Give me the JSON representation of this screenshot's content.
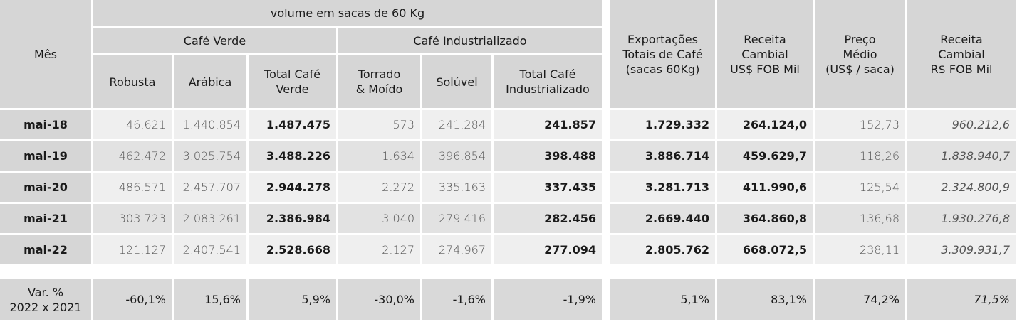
{
  "header": {
    "mes": "Mês",
    "volume": "volume em sacas de 60 Kg",
    "cafe_verde": "Café Verde",
    "cafe_industrializado": "Café Industrializado",
    "robusta": "Robusta",
    "arabica": "Arábica",
    "total_verde_1": "Total Café",
    "total_verde_2": "Verde",
    "torrado_1": "Torrado",
    "torrado_2": "& Moído",
    "soluvel": "Solúvel",
    "total_ind_1": "Total Café",
    "total_ind_2": "Industrializado",
    "export_1": "Exportações",
    "export_2": "Totais de Café",
    "export_3": "(sacas 60Kg)",
    "receita_usd_1": "Receita",
    "receita_usd_2": "Cambial",
    "receita_usd_3": "US$ FOB Mil",
    "preco_1": "Preço",
    "preco_2": "Médio",
    "preco_3": "(US$ / saca)",
    "receita_brl_1": "Receita",
    "receita_brl_2": "Cambial",
    "receita_brl_3": "R$ FOB Mil"
  },
  "rows": [
    {
      "mes": "mai-18",
      "robusta": "46.621",
      "arabica": "1.440.854",
      "total_verde": "1.487.475",
      "torrado": "573",
      "soluvel": "241.284",
      "total_ind": "241.857",
      "export": "1.729.332",
      "receita_usd": "264.124,0",
      "preco": "152,73",
      "receita_brl": "960.212,6"
    },
    {
      "mes": "mai-19",
      "robusta": "462.472",
      "arabica": "3.025.754",
      "total_verde": "3.488.226",
      "torrado": "1.634",
      "soluvel": "396.854",
      "total_ind": "398.488",
      "export": "3.886.714",
      "receita_usd": "459.629,7",
      "preco": "118,26",
      "receita_brl": "1.838.940,7"
    },
    {
      "mes": "mai-20",
      "robusta": "486.571",
      "arabica": "2.457.707",
      "total_verde": "2.944.278",
      "torrado": "2.272",
      "soluvel": "335.163",
      "total_ind": "337.435",
      "export": "3.281.713",
      "receita_usd": "411.990,6",
      "preco": "125,54",
      "receita_brl": "2.324.800,9"
    },
    {
      "mes": "mai-21",
      "robusta": "303.723",
      "arabica": "2.083.261",
      "total_verde": "2.386.984",
      "torrado": "3.040",
      "soluvel": "279.416",
      "total_ind": "282.456",
      "export": "2.669.440",
      "receita_usd": "364.860,8",
      "preco": "136,68",
      "receita_brl": "1.930.276,8"
    },
    {
      "mes": "mai-22",
      "robusta": "121.127",
      "arabica": "2.407.541",
      "total_verde": "2.528.668",
      "torrado": "2.127",
      "soluvel": "274.967",
      "total_ind": "277.094",
      "export": "2.805.762",
      "receita_usd": "668.072,5",
      "preco": "238,11",
      "receita_brl": "3.309.931,7"
    }
  ],
  "variation": {
    "label_1": "Var. %",
    "label_2": "2022 x 2021",
    "robusta": "-60,1%",
    "arabica": "15,6%",
    "total_verde": "5,9%",
    "torrado": "-30,0%",
    "soluvel": "-1,6%",
    "total_ind": "-1,9%",
    "export": "5,1%",
    "receita_usd": "83,1%",
    "preco": "74,2%",
    "receita_brl": "71,5%"
  }
}
